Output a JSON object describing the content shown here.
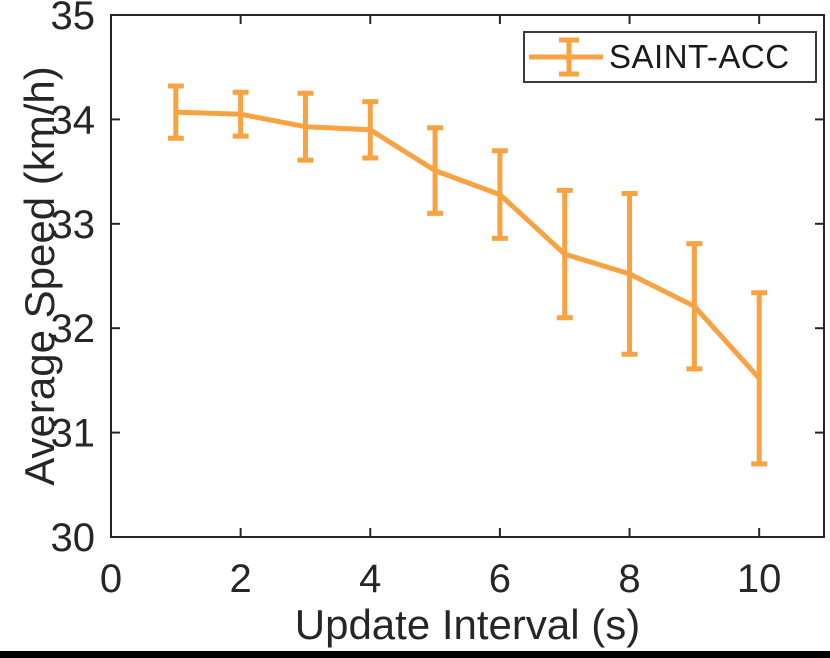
{
  "figure": {
    "background": "#ffffff",
    "axis_color": "#262626",
    "bottom_rule_color": "#000000"
  },
  "chart_data": {
    "type": "line",
    "title": "",
    "xlabel": "Update Interval (s)",
    "ylabel": "Average Speed (km/h)",
    "xlim": [
      0,
      11
    ],
    "ylim": [
      30,
      35
    ],
    "xticks": [
      0,
      2,
      4,
      6,
      8,
      10
    ],
    "yticks": [
      30,
      31,
      32,
      33,
      34,
      35
    ],
    "grid": false,
    "legend": {
      "position": "top-right",
      "entries": [
        "SAINT-ACC"
      ]
    },
    "series": [
      {
        "name": "SAINT-ACC",
        "color": "#F9A242",
        "marker": "errorbar",
        "x": [
          1,
          2,
          3,
          4,
          5,
          6,
          7,
          8,
          9,
          10
        ],
        "y": [
          34.07,
          34.05,
          33.93,
          33.9,
          33.51,
          33.28,
          32.71,
          32.52,
          32.21,
          31.52
        ],
        "yerr": [
          0.25,
          0.21,
          0.32,
          0.27,
          0.41,
          0.42,
          0.61,
          0.77,
          0.6,
          0.82
        ]
      }
    ]
  }
}
